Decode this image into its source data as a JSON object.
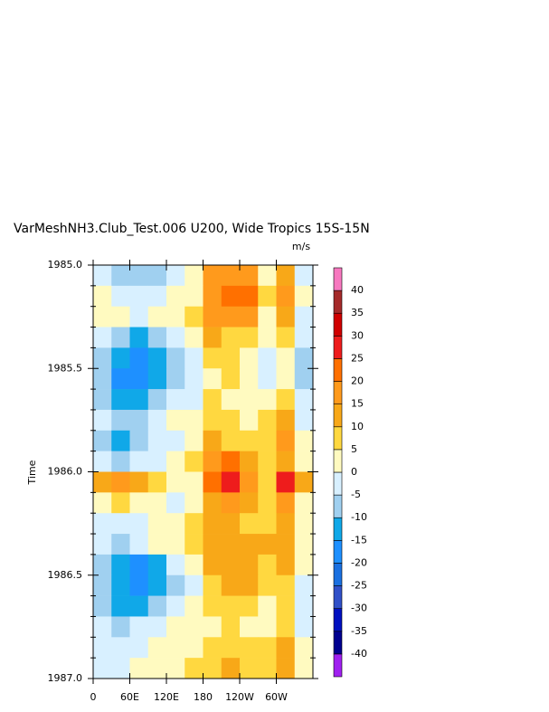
{
  "chart_data": {
    "type": "heatmap",
    "title": "VarMeshNH3.Club_Test.006 U200, Wide Tropics 15S-15N",
    "unit_label": "m/s",
    "y_label": "Time",
    "xlim": [
      0,
      360
    ],
    "xticks": [
      0,
      {
        "value": 60,
        "label": "60E"
      },
      {
        "value": 120,
        "label": "120E"
      },
      180,
      {
        "value": 240,
        "label": "120W"
      },
      {
        "value": 300,
        "label": "60W"
      }
    ],
    "ylim": [
      1985,
      1987
    ],
    "y_reversed": true,
    "yticks": [
      {
        "value": 1985,
        "label": "1985.0"
      },
      1985.5,
      {
        "value": 1986,
        "label": "1986.0"
      },
      1986.5,
      {
        "value": 1987,
        "label": "1987.0"
      }
    ],
    "x_bins": [
      0,
      30,
      60,
      90,
      120,
      150,
      180,
      210,
      240,
      270,
      300,
      330,
      360
    ],
    "y_bins": [
      1985,
      1985.1,
      1985.2,
      1985.3,
      1985.4,
      1985.5,
      1985.6,
      1985.7,
      1985.8,
      1985.9,
      1986,
      1986.1,
      1986.2,
      1986.3,
      1986.4,
      1986.5,
      1986.6,
      1986.7,
      1986.8,
      1986.9,
      1987
    ],
    "z": [
      [
        -5,
        -8,
        -10,
        -8,
        -3,
        0,
        15,
        18,
        15,
        3,
        12,
        -5
      ],
      [
        0,
        -3,
        -5,
        -3,
        2,
        3,
        18,
        20,
        22,
        5,
        15,
        0
      ],
      [
        3,
        0,
        -3,
        0,
        3,
        5,
        15,
        18,
        15,
        3,
        10,
        -3
      ],
      [
        -3,
        -8,
        -12,
        -8,
        -3,
        2,
        10,
        8,
        5,
        0,
        5,
        -5
      ],
      [
        -8,
        -15,
        -18,
        -15,
        -8,
        -3,
        5,
        8,
        3,
        -3,
        2,
        -8
      ],
      [
        -10,
        -18,
        -20,
        -15,
        -10,
        -5,
        3,
        5,
        0,
        -5,
        0,
        -10
      ],
      [
        -8,
        -15,
        -15,
        -10,
        -5,
        -3,
        5,
        3,
        0,
        0,
        5,
        -5
      ],
      [
        -5,
        -10,
        -8,
        -5,
        0,
        2,
        5,
        5,
        3,
        5,
        12,
        -3
      ],
      [
        -10,
        -12,
        -8,
        -5,
        -3,
        3,
        10,
        8,
        5,
        8,
        15,
        0
      ],
      [
        -5,
        -8,
        -5,
        -3,
        0,
        5,
        15,
        20,
        12,
        5,
        12,
        3
      ],
      [
        12,
        15,
        12,
        5,
        0,
        3,
        20,
        25,
        18,
        8,
        25,
        10
      ],
      [
        3,
        5,
        3,
        0,
        -3,
        3,
        12,
        15,
        10,
        5,
        15,
        3
      ],
      [
        -3,
        -5,
        -3,
        0,
        0,
        5,
        10,
        10,
        8,
        8,
        12,
        0
      ],
      [
        -5,
        -8,
        -3,
        0,
        3,
        5,
        12,
        12,
        10,
        10,
        12,
        3
      ],
      [
        -8,
        -15,
        -18,
        -12,
        -5,
        0,
        10,
        12,
        12,
        8,
        10,
        0
      ],
      [
        -10,
        -15,
        -20,
        -15,
        -8,
        -3,
        8,
        10,
        10,
        5,
        8,
        -3
      ],
      [
        -8,
        -12,
        -12,
        -10,
        -5,
        0,
        5,
        8,
        5,
        3,
        8,
        -5
      ],
      [
        -5,
        -8,
        -5,
        -3,
        0,
        3,
        3,
        5,
        3,
        3,
        8,
        -3
      ],
      [
        -3,
        -5,
        -3,
        0,
        3,
        3,
        5,
        8,
        5,
        5,
        10,
        0
      ],
      [
        -5,
        -3,
        0,
        3,
        3,
        5,
        8,
        10,
        8,
        8,
        12,
        3
      ]
    ],
    "levels": [
      -40,
      -35,
      -30,
      -25,
      -20,
      -15,
      -10,
      -5,
      0,
      5,
      10,
      15,
      20,
      25,
      30,
      35,
      40
    ],
    "colors": [
      "#a020f0",
      "#000090",
      "#0010c0",
      "#3050c8",
      "#1a70e0",
      "#1e90ff",
      "#10a8e8",
      "#a0d0f0",
      "#d8f0ff",
      "#fffac0",
      "#ffd840",
      "#f8a818",
      "#ff9a1c",
      "#ff7000",
      "#ee1c1c",
      "#d00000",
      "#a52a2a",
      "#f778bf"
    ]
  }
}
